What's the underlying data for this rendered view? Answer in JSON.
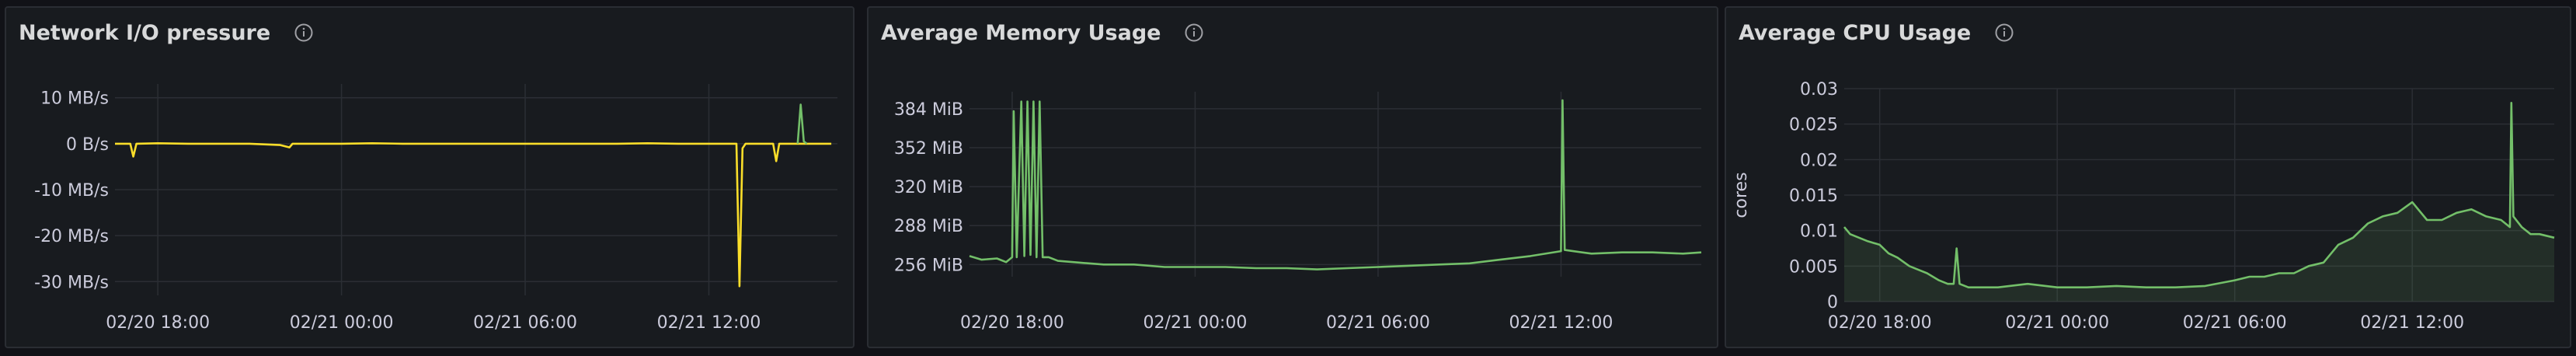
{
  "panels": [
    {
      "title": "Network I/O pressure",
      "info_icon": "info-circle-icon",
      "chart_data": {
        "type": "line",
        "ytick_labels": [
          "10 MB/s",
          "0 B/s",
          "-10 MB/s",
          "-20 MB/s",
          "-30 MB/s"
        ],
        "yticks": [
          10,
          0,
          -10,
          -20,
          -30
        ],
        "ylim": [
          -33,
          13
        ],
        "xtick_labels": [
          "02/20 18:00",
          "02/21 00:00",
          "02/21 06:00",
          "02/21 12:00"
        ],
        "xticks": [
          18,
          24,
          30,
          36
        ],
        "xlim": [
          16.6,
          40.2
        ],
        "ylabel": "",
        "grid": true,
        "series": [
          {
            "color": "#fade2a",
            "points": [
              [
                16.6,
                0
              ],
              [
                17.1,
                0
              ],
              [
                17.2,
                -2.8
              ],
              [
                17.3,
                0
              ],
              [
                18,
                0.1
              ],
              [
                19,
                0
              ],
              [
                20,
                0
              ],
              [
                21,
                0
              ],
              [
                22,
                -0.3
              ],
              [
                22.3,
                -0.8
              ],
              [
                22.4,
                0
              ],
              [
                23,
                0
              ],
              [
                24,
                0
              ],
              [
                25,
                0.1
              ],
              [
                26,
                0
              ],
              [
                27,
                0
              ],
              [
                28,
                0
              ],
              [
                29,
                0
              ],
              [
                30,
                0
              ],
              [
                31,
                0
              ],
              [
                32,
                0
              ],
              [
                33,
                0
              ],
              [
                34,
                0.1
              ],
              [
                35,
                0
              ],
              [
                35.4,
                0
              ],
              [
                36,
                0
              ],
              [
                36.9,
                0
              ],
              [
                37,
                -31
              ],
              [
                37.1,
                -1
              ],
              [
                37.2,
                0
              ],
              [
                38.1,
                0
              ],
              [
                38.2,
                -3.8
              ],
              [
                38.3,
                0
              ],
              [
                40,
                0
              ]
            ]
          },
          {
            "color": "#73bf69",
            "points": [
              [
                38.9,
                0
              ],
              [
                39.0,
                8.5
              ],
              [
                39.1,
                0.5
              ],
              [
                39.2,
                0
              ]
            ]
          }
        ]
      }
    },
    {
      "title": "Average Memory Usage",
      "info_icon": "info-circle-icon",
      "chart_data": {
        "type": "line",
        "ytick_labels": [
          "384 MiB",
          "352 MiB",
          "320 MiB",
          "288 MiB",
          "256 MiB"
        ],
        "yticks": [
          384,
          352,
          320,
          288,
          256
        ],
        "ylim": [
          246,
          398
        ],
        "xtick_labels": [
          "02/20 18:00",
          "02/21 00:00",
          "02/21 06:00",
          "02/21 12:00"
        ],
        "xticks": [
          18,
          24,
          30,
          36
        ],
        "xlim": [
          16.6,
          40.6
        ],
        "ylabel": "",
        "grid": true,
        "series": [
          {
            "color": "#73bf69",
            "points": [
              [
                16.6,
                263
              ],
              [
                17.0,
                260
              ],
              [
                17.5,
                261
              ],
              [
                17.8,
                258
              ],
              [
                18.0,
                262
              ],
              [
                18.05,
                382
              ],
              [
                18.15,
                262
              ],
              [
                18.3,
                390
              ],
              [
                18.4,
                263
              ],
              [
                18.5,
                390
              ],
              [
                18.6,
                264
              ],
              [
                18.7,
                390
              ],
              [
                18.8,
                262
              ],
              [
                18.9,
                390
              ],
              [
                19.0,
                262
              ],
              [
                19.2,
                262
              ],
              [
                19.5,
                259
              ],
              [
                20,
                258
              ],
              [
                21,
                256
              ],
              [
                22,
                256
              ],
              [
                23,
                254
              ],
              [
                24,
                254
              ],
              [
                25,
                254
              ],
              [
                26,
                253
              ],
              [
                27,
                253
              ],
              [
                28,
                252
              ],
              [
                29,
                253
              ],
              [
                30,
                254
              ],
              [
                31,
                255
              ],
              [
                32,
                256
              ],
              [
                33,
                257
              ],
              [
                34,
                260
              ],
              [
                35,
                263
              ],
              [
                36,
                267
              ],
              [
                36.0,
                268
              ],
              [
                36.05,
                391
              ],
              [
                36.12,
                268
              ],
              [
                37,
                265
              ],
              [
                38,
                266
              ],
              [
                39,
                266
              ],
              [
                40,
                265
              ],
              [
                40.6,
                266
              ]
            ]
          }
        ]
      }
    },
    {
      "title": "Average CPU Usage",
      "info_icon": "info-circle-icon",
      "chart_data": {
        "type": "area",
        "ytick_labels": [
          "0.03",
          "0.025",
          "0.02",
          "0.015",
          "0.01",
          "0.005",
          "0"
        ],
        "yticks": [
          0.03,
          0.025,
          0.02,
          0.015,
          0.01,
          0.005,
          0
        ],
        "ylim": [
          0,
          0.03
        ],
        "xtick_labels": [
          "02/20 18:00",
          "02/21 00:00",
          "02/21 06:00",
          "02/21 12:00"
        ],
        "xticks": [
          18,
          24,
          30,
          36
        ],
        "xlim": [
          16.8,
          40.8
        ],
        "ylabel": "cores",
        "grid": true,
        "series": [
          {
            "color": "#73bf69",
            "points": [
              [
                16.8,
                0.0105
              ],
              [
                17.0,
                0.0095
              ],
              [
                17.3,
                0.009
              ],
              [
                17.6,
                0.0085
              ],
              [
                18.0,
                0.008
              ],
              [
                18.3,
                0.0068
              ],
              [
                18.6,
                0.0062
              ],
              [
                19.0,
                0.005
              ],
              [
                19.3,
                0.0045
              ],
              [
                19.6,
                0.004
              ],
              [
                20.0,
                0.003
              ],
              [
                20.3,
                0.0025
              ],
              [
                20.5,
                0.0025
              ],
              [
                20.6,
                0.0075
              ],
              [
                20.7,
                0.0025
              ],
              [
                21.0,
                0.002
              ],
              [
                22.0,
                0.002
              ],
              [
                23.0,
                0.0025
              ],
              [
                24.0,
                0.002
              ],
              [
                25.0,
                0.002
              ],
              [
                26.0,
                0.0022
              ],
              [
                27.0,
                0.002
              ],
              [
                28.0,
                0.002
              ],
              [
                29.0,
                0.0022
              ],
              [
                30.0,
                0.003
              ],
              [
                30.5,
                0.0035
              ],
              [
                31.0,
                0.0035
              ],
              [
                31.5,
                0.004
              ],
              [
                32.0,
                0.004
              ],
              [
                32.5,
                0.005
              ],
              [
                33.0,
                0.0055
              ],
              [
                33.5,
                0.008
              ],
              [
                34.0,
                0.009
              ],
              [
                34.5,
                0.011
              ],
              [
                35.0,
                0.012
              ],
              [
                35.5,
                0.0125
              ],
              [
                36.0,
                0.014
              ],
              [
                36.5,
                0.0115
              ],
              [
                37.0,
                0.0115
              ],
              [
                37.5,
                0.0125
              ],
              [
                38.0,
                0.013
              ],
              [
                38.5,
                0.012
              ],
              [
                39.0,
                0.0115
              ],
              [
                39.3,
                0.0105
              ],
              [
                39.35,
                0.028
              ],
              [
                39.42,
                0.012
              ],
              [
                39.7,
                0.0105
              ],
              [
                40.0,
                0.0095
              ],
              [
                40.3,
                0.0095
              ],
              [
                40.8,
                0.009
              ]
            ]
          }
        ]
      }
    }
  ]
}
